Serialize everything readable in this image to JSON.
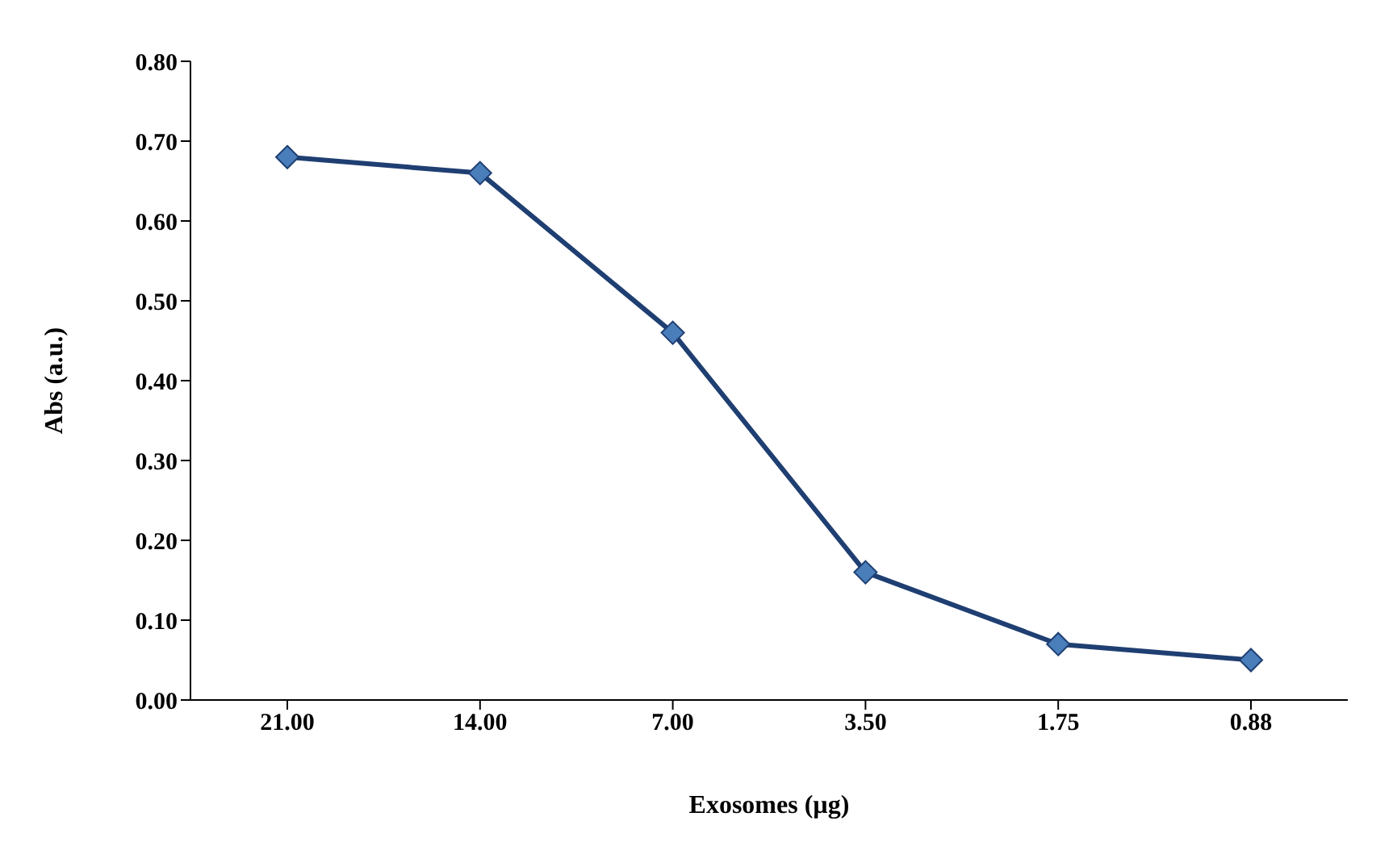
{
  "chart_data": {
    "type": "line",
    "xlabel": "Exosomes (µg)",
    "ylabel": "Abs (a.u.)",
    "categories": [
      "21.00",
      "14.00",
      "7.00",
      "3.50",
      "1.75",
      "0.88"
    ],
    "series": [
      {
        "color": "#1f3f72",
        "values": [
          0.68,
          0.66,
          0.46,
          0.16,
          0.07,
          0.05
        ]
      }
    ],
    "ylim": [
      0,
      0.8
    ],
    "yticks": [
      {
        "value": 0,
        "label": "0.00"
      },
      {
        "value": 0.1,
        "label": "0.10"
      },
      {
        "value": 0.2,
        "label": "0.20"
      },
      {
        "value": 0.3,
        "label": "0.30"
      },
      {
        "value": 0.4,
        "label": "0.40"
      },
      {
        "value": 0.5,
        "label": "0.50"
      },
      {
        "value": 0.6,
        "label": "0.60"
      },
      {
        "value": 0.7,
        "label": "0.70"
      },
      {
        "value": 0.8,
        "label": "0.80"
      }
    ],
    "marker": "diamond",
    "grid": false,
    "legend": false
  }
}
